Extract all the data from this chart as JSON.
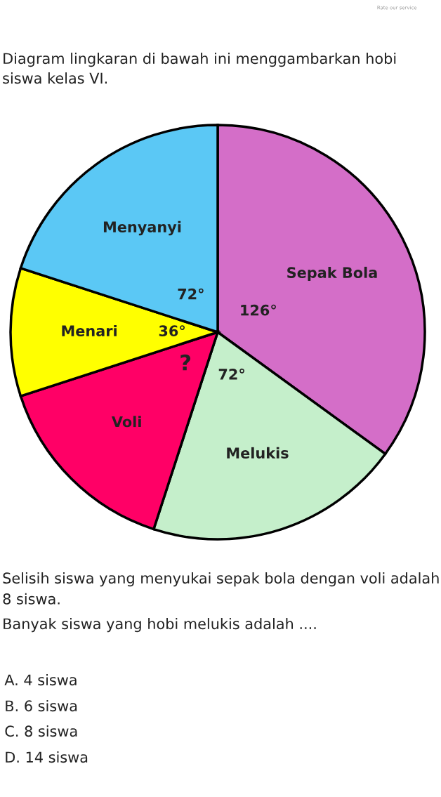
{
  "chart_data": {
    "type": "pie",
    "title": "Diagram lingkaran di bawah ini menggambarkan hobi siswa kelas VI.",
    "categories": [
      "Sepak Bola",
      "Melukis",
      "Voli",
      "Menari",
      "Menyanyi"
    ],
    "values": [
      126,
      72,
      54,
      36,
      72
    ],
    "value_labels": [
      "126°",
      "72°",
      "?",
      "36°",
      "72°"
    ],
    "colors": [
      "#d46ec8",
      "#c5efcb",
      "#ff0066",
      "#ffff00",
      "#5bc8f5"
    ],
    "annotations": [
      "Rate our service",
      "Selisih siswa yang menyukai sepak bola dengan voli adalah 8 siswa.",
      "Banyak siswa yang hobi melukis adalah ....",
      "A. 4 siswa",
      "B. 6 siswa",
      "C. 8 siswa",
      "D. 14 siswa"
    ]
  }
}
